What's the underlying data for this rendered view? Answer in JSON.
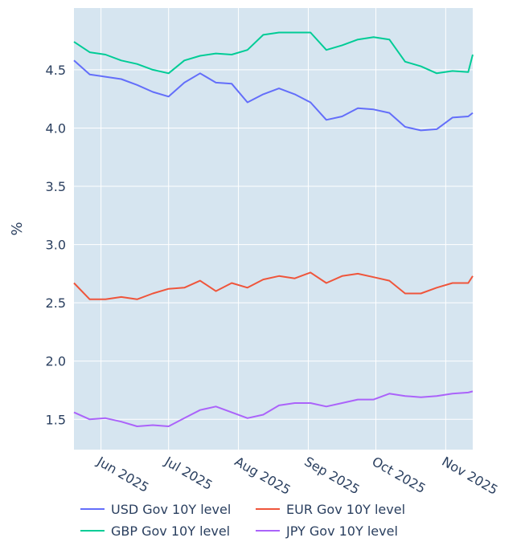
{
  "chart_data": {
    "type": "line",
    "title": "",
    "xlabel": "",
    "ylabel": "%",
    "xlim": [
      "2025-05-20",
      "2025-11-13"
    ],
    "ylim": [
      1.24,
      5.03
    ],
    "grid": true,
    "legend_position": "bottom",
    "x_ticks": [
      {
        "date": "2025-06-01",
        "label": "Jun 2025"
      },
      {
        "date": "2025-07-01",
        "label": "Jul 2025"
      },
      {
        "date": "2025-08-01",
        "label": "Aug 2025"
      },
      {
        "date": "2025-09-01",
        "label": "Sep 2025"
      },
      {
        "date": "2025-10-01",
        "label": "Oct 2025"
      },
      {
        "date": "2025-11-01",
        "label": "Nov 2025"
      }
    ],
    "y_ticks": [
      {
        "value": 1.5,
        "label": "1.5"
      },
      {
        "value": 2.0,
        "label": "2.0"
      },
      {
        "value": 2.5,
        "label": "2.5"
      },
      {
        "value": 3.0,
        "label": "3.0"
      },
      {
        "value": 3.5,
        "label": "3.5"
      },
      {
        "value": 4.0,
        "label": "4.0"
      },
      {
        "value": 4.5,
        "label": "4.5"
      }
    ],
    "x": [
      "2025-05-20",
      "2025-05-27",
      "2025-06-03",
      "2025-06-10",
      "2025-06-17",
      "2025-06-24",
      "2025-07-01",
      "2025-07-08",
      "2025-07-15",
      "2025-07-22",
      "2025-07-29",
      "2025-08-05",
      "2025-08-12",
      "2025-08-19",
      "2025-08-26",
      "2025-09-02",
      "2025-09-09",
      "2025-09-16",
      "2025-09-23",
      "2025-09-30",
      "2025-10-07",
      "2025-10-14",
      "2025-10-21",
      "2025-10-28",
      "2025-11-04",
      "2025-11-11",
      "2025-11-13"
    ],
    "series": [
      {
        "name": "USD Gov 10Y level",
        "color": "#636efa",
        "values": [
          4.58,
          4.46,
          4.44,
          4.42,
          4.37,
          4.31,
          4.27,
          4.39,
          4.47,
          4.39,
          4.38,
          4.22,
          4.29,
          4.34,
          4.29,
          4.22,
          4.07,
          4.1,
          4.17,
          4.16,
          4.13,
          4.01,
          3.98,
          3.99,
          4.09,
          4.1,
          4.13
        ]
      },
      {
        "name": "EUR Gov 10Y level",
        "color": "#ef553b",
        "values": [
          2.67,
          2.53,
          2.53,
          2.55,
          2.53,
          2.58,
          2.62,
          2.63,
          2.69,
          2.6,
          2.67,
          2.63,
          2.7,
          2.73,
          2.71,
          2.76,
          2.67,
          2.73,
          2.75,
          2.72,
          2.69,
          2.58,
          2.58,
          2.63,
          2.67,
          2.67,
          2.73
        ]
      },
      {
        "name": "GBP Gov 10Y level",
        "color": "#00cc96",
        "values": [
          4.74,
          4.65,
          4.63,
          4.58,
          4.55,
          4.5,
          4.47,
          4.58,
          4.62,
          4.64,
          4.63,
          4.67,
          4.8,
          4.82,
          4.82,
          4.82,
          4.67,
          4.71,
          4.76,
          4.78,
          4.76,
          4.57,
          4.53,
          4.47,
          4.49,
          4.48,
          4.63
        ]
      },
      {
        "name": "JPY Gov 10Y level",
        "color": "#ab63fa",
        "values": [
          1.56,
          1.5,
          1.51,
          1.48,
          1.44,
          1.45,
          1.44,
          1.51,
          1.58,
          1.61,
          1.56,
          1.51,
          1.54,
          1.62,
          1.64,
          1.64,
          1.61,
          1.64,
          1.67,
          1.67,
          1.72,
          1.7,
          1.69,
          1.7,
          1.72,
          1.73,
          1.74
        ]
      }
    ]
  },
  "colors": {
    "plot_bg": "#d6e5f0",
    "grid": "#ffffff",
    "text": "#2a3f5f"
  }
}
